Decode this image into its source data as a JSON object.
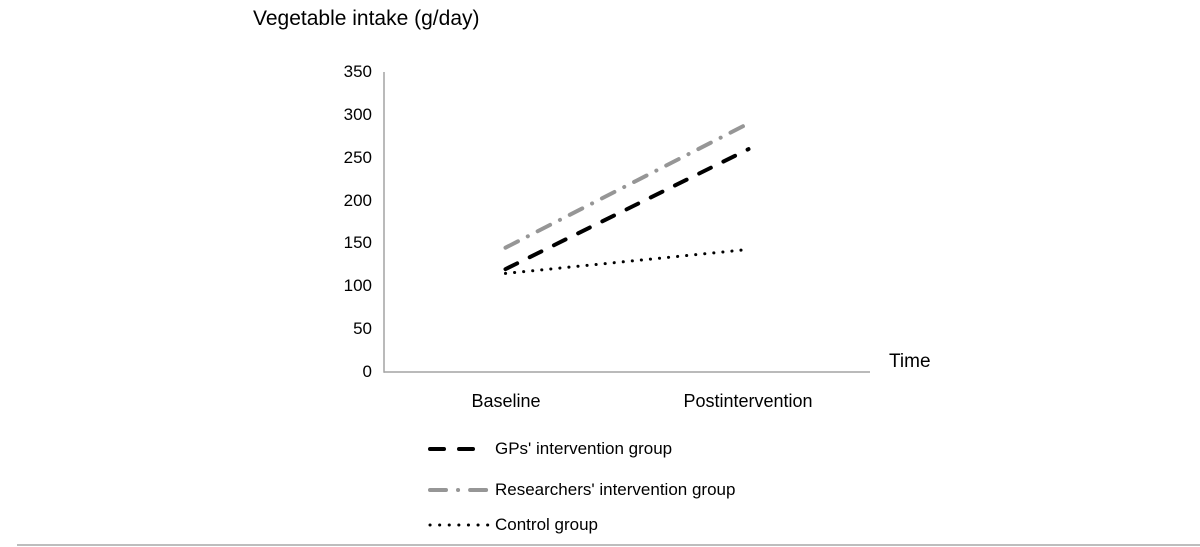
{
  "page": {
    "background_color": "#ffffff",
    "bottom_rule_color": "#bdbdbd"
  },
  "chart_data": {
    "type": "line",
    "title": "Vegetable intake (g/day)",
    "xlabel": "Time",
    "ylabel": "",
    "categories": [
      "Baseline",
      "Postintervention"
    ],
    "series": [
      {
        "name": "GPs' intervention group",
        "values": [
          120,
          260
        ],
        "color": "#000000",
        "style": "dashed"
      },
      {
        "name": "Researchers' intervention group",
        "values": [
          145,
          290
        ],
        "color": "#969696",
        "style": "dash-dot"
      },
      {
        "name": "Control group",
        "values": [
          115,
          143
        ],
        "color": "#000000",
        "style": "dotted"
      }
    ],
    "ylim": [
      0,
      350
    ],
    "yticks": [
      0,
      50,
      100,
      150,
      200,
      250,
      300,
      350
    ],
    "grid": false,
    "legend_position": "bottom-left",
    "axis_color": "#a3a3a3"
  }
}
